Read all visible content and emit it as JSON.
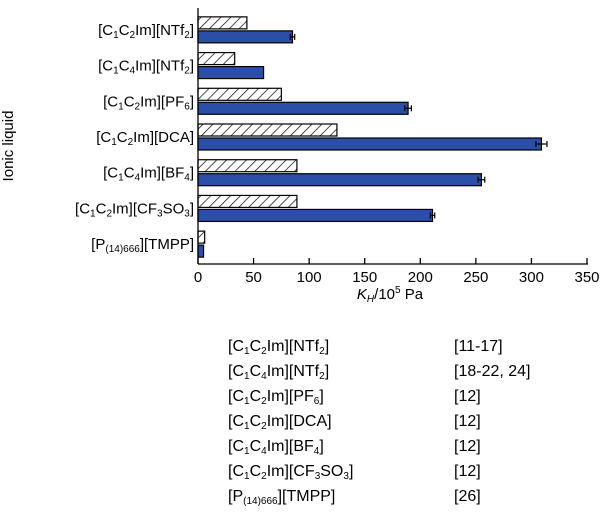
{
  "chart_data": {
    "type": "bar",
    "orientation": "horizontal",
    "ylabel": "Ionic liquid",
    "xlabel_parts": {
      "symbol": "K",
      "symbol_sub": "H",
      "slash": "/10",
      "power": "5",
      "unit": " Pa"
    },
    "xlim": [
      0,
      350
    ],
    "xticks": [
      "0",
      "50",
      "100",
      "150",
      "200",
      "250",
      "300",
      "350"
    ],
    "grid": false,
    "categories": [
      [
        {
          "t": "[C"
        },
        {
          "s": "1"
        },
        {
          "t": "C"
        },
        {
          "s": "2"
        },
        {
          "t": "Im][NTf"
        },
        {
          "s": "2"
        },
        {
          "t": "]"
        }
      ],
      [
        {
          "t": "[C"
        },
        {
          "s": "1"
        },
        {
          "t": "C"
        },
        {
          "s": "4"
        },
        {
          "t": "Im][NTf"
        },
        {
          "s": "2"
        },
        {
          "t": "]"
        }
      ],
      [
        {
          "t": "[C"
        },
        {
          "s": "1"
        },
        {
          "t": "C"
        },
        {
          "s": "2"
        },
        {
          "t": "Im][PF"
        },
        {
          "s": "6"
        },
        {
          "t": "]"
        }
      ],
      [
        {
          "t": "[C"
        },
        {
          "s": "1"
        },
        {
          "t": "C"
        },
        {
          "s": "2"
        },
        {
          "t": "Im][DCA]"
        }
      ],
      [
        {
          "t": "[C"
        },
        {
          "s": "1"
        },
        {
          "t": "C"
        },
        {
          "s": "4"
        },
        {
          "t": "Im][BF"
        },
        {
          "s": "4"
        },
        {
          "t": "]"
        }
      ],
      [
        {
          "t": "[C"
        },
        {
          "s": "1"
        },
        {
          "t": "C"
        },
        {
          "s": "2"
        },
        {
          "t": "Im][CF"
        },
        {
          "s": "3"
        },
        {
          "t": "SO"
        },
        {
          "s": "3"
        },
        {
          "t": "]"
        }
      ],
      [
        {
          "t": "[P"
        },
        {
          "s": "(14)666"
        },
        {
          "t": "][TMPP]"
        }
      ]
    ],
    "series": [
      {
        "style": "hatched",
        "values": [
          44,
          33,
          75,
          125,
          89,
          89,
          6
        ]
      },
      {
        "style": "solid",
        "color": "#2b4fa8",
        "values": [
          85,
          59,
          189,
          309,
          255,
          211,
          5
        ],
        "errors": [
          2,
          0,
          3,
          5,
          3,
          2,
          0
        ]
      }
    ]
  },
  "references": [
    [
      [
        {
          "t": "[C"
        },
        {
          "s": "1"
        },
        {
          "t": "C"
        },
        {
          "s": "2"
        },
        {
          "t": "Im][NTf"
        },
        {
          "s": "2"
        },
        {
          "t": "]"
        }
      ],
      "[11-17]"
    ],
    [
      [
        {
          "t": "[C"
        },
        {
          "s": "1"
        },
        {
          "t": "C"
        },
        {
          "s": "4"
        },
        {
          "t": "Im][NTf"
        },
        {
          "s": "2"
        },
        {
          "t": "]"
        }
      ],
      "[18-22, 24]"
    ],
    [
      [
        {
          "t": "[C"
        },
        {
          "s": "1"
        },
        {
          "t": "C"
        },
        {
          "s": "2"
        },
        {
          "t": "Im][PF"
        },
        {
          "s": "6"
        },
        {
          "t": "]"
        }
      ],
      "[12]"
    ],
    [
      [
        {
          "t": "[C"
        },
        {
          "s": "1"
        },
        {
          "t": "C"
        },
        {
          "s": "2"
        },
        {
          "t": "Im][DCA]"
        }
      ],
      "[12]"
    ],
    [
      [
        {
          "t": "[C"
        },
        {
          "s": "1"
        },
        {
          "t": "C"
        },
        {
          "s": "4"
        },
        {
          "t": "Im][BF"
        },
        {
          "s": "4"
        },
        {
          "t": "]"
        }
      ],
      "[12]"
    ],
    [
      [
        {
          "t": "[C"
        },
        {
          "s": "1"
        },
        {
          "t": "C"
        },
        {
          "s": "2"
        },
        {
          "t": "Im][CF"
        },
        {
          "s": "3"
        },
        {
          "t": "SO"
        },
        {
          "s": "3"
        },
        {
          "t": "]"
        }
      ],
      "[12]"
    ],
    [
      [
        {
          "t": "[P"
        },
        {
          "s": "(14)666"
        },
        {
          "t": "][TMPP]"
        }
      ],
      "[26]"
    ]
  ]
}
